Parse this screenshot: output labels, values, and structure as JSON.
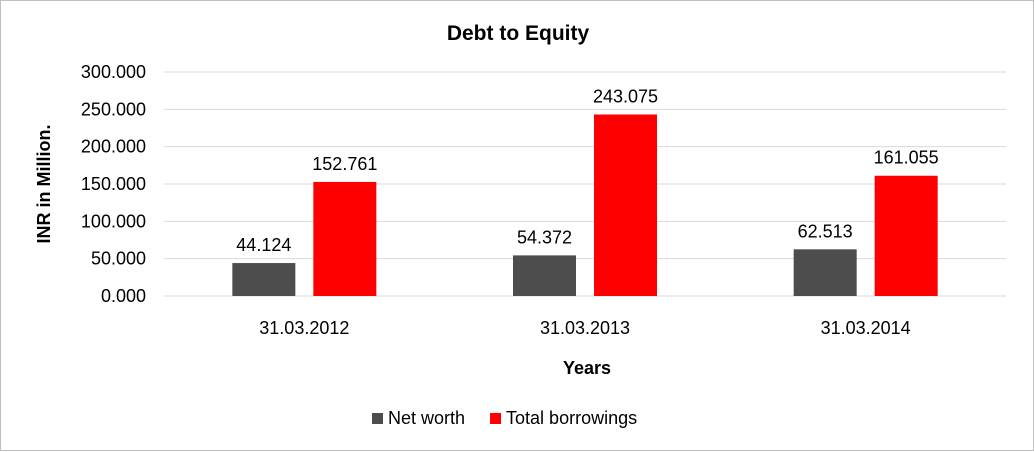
{
  "chart_data": {
    "type": "bar",
    "title": "Debt to Equity",
    "xlabel": "Years",
    "ylabel": "INR in Million.",
    "categories": [
      "31.03.2012",
      "31.03.2013",
      "31.03.2014"
    ],
    "series": [
      {
        "name": "Net worth",
        "values": [
          44.124,
          54.372,
          62.513
        ],
        "labels": [
          "44.124",
          "54.372",
          "62.513"
        ],
        "color": "#4d4d4d"
      },
      {
        "name": "Total borrowings",
        "values": [
          152.761,
          243.075,
          161.055
        ],
        "labels": [
          "152.761",
          "243.075",
          "161.055"
        ],
        "color": "#ff0000"
      }
    ],
    "ylim": [
      0,
      300
    ],
    "yticks": [
      0,
      50,
      100,
      150,
      200,
      250,
      300
    ],
    "ytick_labels": [
      "0.000",
      "50.000",
      "100.000",
      "150.000",
      "200.000",
      "250.000",
      "300.000"
    ],
    "grid": true,
    "gridline_color": "#d9d9d9",
    "legend_position": "bottom"
  }
}
